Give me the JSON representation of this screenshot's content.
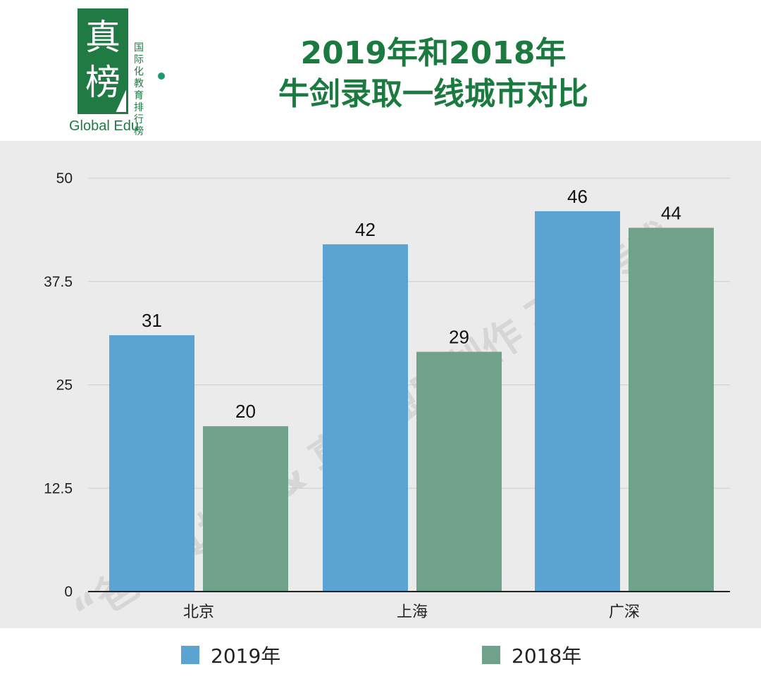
{
  "logo": {
    "char1": "真",
    "char2": "榜",
    "subtitle": "国际化教育排行榜",
    "english": "Global Edu"
  },
  "title": {
    "line1": "2019年和2018年",
    "line2": "牛剑录取一线城市对比"
  },
  "watermark": "“爸爸真棒” & 真榜独家制作 不得转载",
  "colors": {
    "series_2019": "#5ba3d1",
    "series_2018": "#6fa18b",
    "title": "#1b7a3f",
    "panel_bg": "#ebebeb"
  },
  "chart_data": {
    "type": "bar",
    "categories": [
      "北京",
      "上海",
      "广深"
    ],
    "series": [
      {
        "name": "2019年",
        "values": [
          31,
          42,
          46
        ]
      },
      {
        "name": "2018年",
        "values": [
          20,
          29,
          44
        ]
      }
    ],
    "yticks": [
      "0",
      "12.5",
      "25",
      "37.5",
      "50"
    ],
    "ylim": [
      0,
      50
    ],
    "grid": true,
    "legend_position": "bottom"
  }
}
